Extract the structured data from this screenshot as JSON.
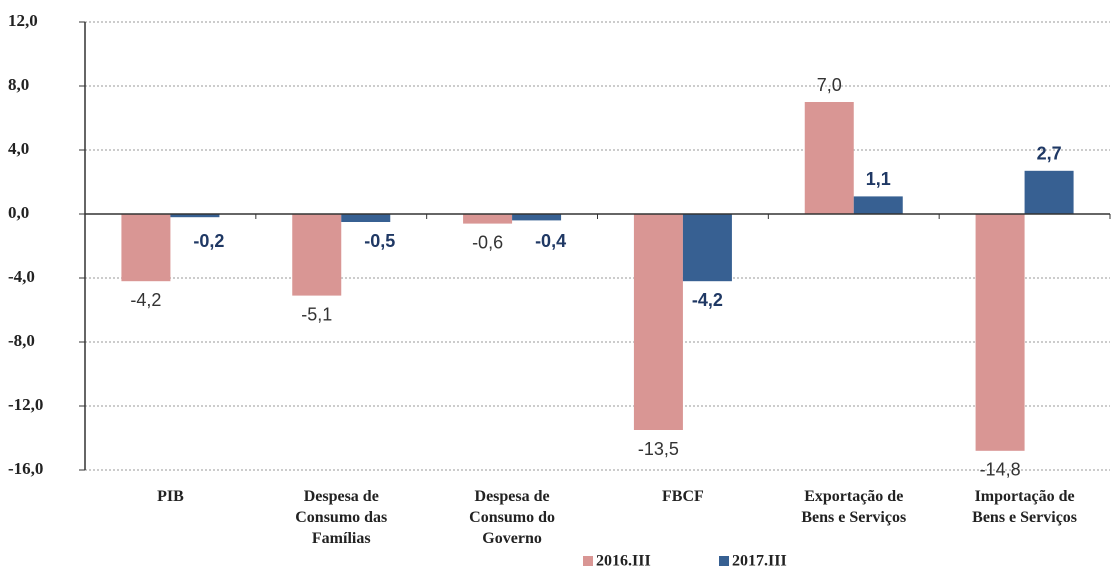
{
  "chart_data": {
    "type": "bar",
    "categories": [
      "PIB",
      "Despesa de\nConsumo das\nFamílias",
      "Despesa de\nConsumo do\nGoverno",
      "FBCF",
      "Exportação de\nBens e Serviços",
      "Importação de\nBens e Serviços"
    ],
    "series": [
      {
        "name": "2016.III",
        "color": "#d99694",
        "values": [
          -4.2,
          -5.1,
          -0.6,
          -13.5,
          7.0,
          -14.8
        ],
        "value_labels": [
          "-4,2",
          "-5,1",
          "-0,6",
          "-13,5",
          "7,0",
          "-14,8"
        ]
      },
      {
        "name": "2017.III",
        "color": "#376092",
        "values": [
          -0.2,
          -0.5,
          -0.4,
          -4.2,
          1.1,
          2.7
        ],
        "value_labels": [
          "-0,2",
          "-0,5",
          "-0,4",
          "-4,2",
          "1,1",
          "2,7"
        ]
      }
    ],
    "ylim": [
      -16,
      12
    ],
    "yticks": [
      {
        "value": -16,
        "label": "-16,0"
      },
      {
        "value": -12,
        "label": "-12,0"
      },
      {
        "value": -8,
        "label": "-8,0"
      },
      {
        "value": -4,
        "label": "-4,0"
      },
      {
        "value": 0,
        "label": "0,0"
      },
      {
        "value": 4,
        "label": "4,0"
      },
      {
        "value": 8,
        "label": "8,0"
      },
      {
        "value": 12,
        "label": "12,0"
      }
    ],
    "grid": true,
    "legend": "bottom"
  }
}
